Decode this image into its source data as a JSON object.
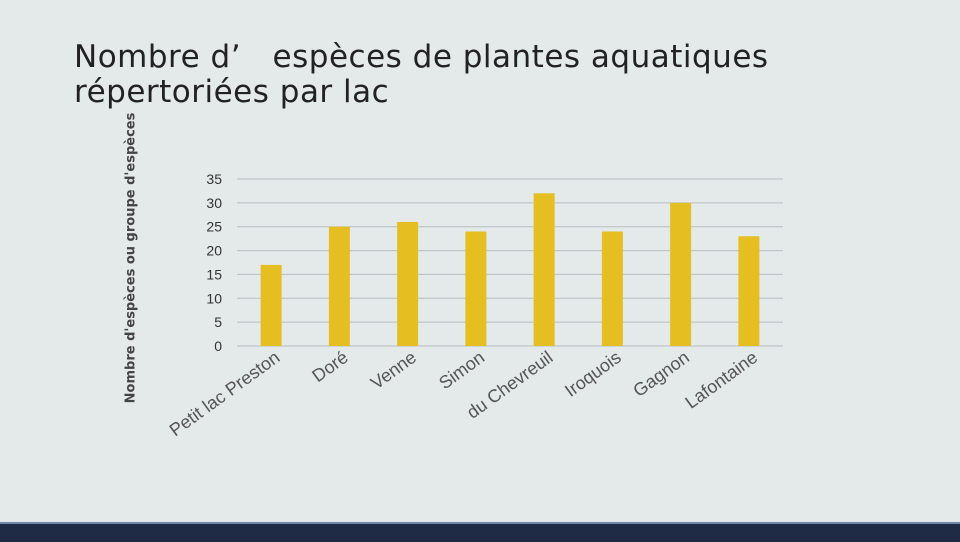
{
  "title": "Nombre d’　espèces de plantes aquatiques répertoriées par lac",
  "colors": {
    "bar": "#e5be22",
    "grid": "#b8bfc2",
    "background": "#e4e9ea",
    "footer": "#1f2a44"
  },
  "chart_data": {
    "type": "bar",
    "title": "Nombre d’　espèces de plantes aquatiques répertoriées par lac",
    "xlabel": "",
    "ylabel": "Nombre d'espèces ou groupe d'espèces",
    "categories": [
      "Petit lac Preston",
      "Doré",
      "Venne",
      "Simon",
      "du Chevreuil",
      "Iroquois",
      "Gagnon",
      "Lafontaine"
    ],
    "values": [
      17,
      25,
      26,
      24,
      32,
      24,
      30,
      23
    ],
    "ylim": [
      0,
      35
    ],
    "yticks": [
      0,
      5,
      10,
      15,
      20,
      25,
      30,
      35
    ],
    "grid": true,
    "legend": "none"
  }
}
